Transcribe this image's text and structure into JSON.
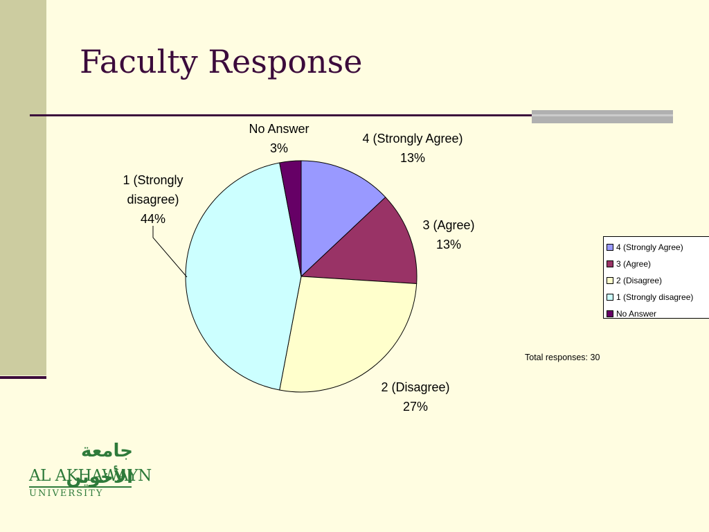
{
  "slide": {
    "title": "Faculty Response",
    "total_label": "Total responses: 30"
  },
  "logo": {
    "arabic": "جامعة الأخوين",
    "name": "AL AKHAWAYN",
    "subtitle": "UNIVERSITY"
  },
  "colors": {
    "background": "#FFFDE1",
    "title": "#3B0B3B",
    "logo": "#2E7A3A"
  },
  "chart_data": {
    "type": "pie",
    "title": "",
    "start_angle_deg": 0,
    "direction": "clockwise",
    "legend_position": "right",
    "slices": [
      {
        "label": "4 (Strongly Agree)",
        "value": 13,
        "display": "13%",
        "color": "#9999FF",
        "label_lines": [
          "4 (Strongly Agree)",
          "13%"
        ]
      },
      {
        "label": "3 (Agree)",
        "value": 13,
        "display": "13%",
        "color": "#993366",
        "label_lines": [
          "3 (Agree)",
          "13%"
        ]
      },
      {
        "label": "2 (Disagree)",
        "value": 27,
        "display": "27%",
        "color": "#FFFFCC",
        "label_lines": [
          "2 (Disagree)",
          "27%"
        ]
      },
      {
        "label": "1 (Strongly disagree)",
        "value": 44,
        "display": "44%",
        "color": "#CCFFFF",
        "label_lines": [
          "1 (Strongly",
          "disagree)",
          "44%"
        ]
      },
      {
        "label": "No Answer",
        "value": 3,
        "display": "3%",
        "color": "#660066",
        "label_lines": [
          "No Answer",
          "3%"
        ]
      }
    ]
  }
}
